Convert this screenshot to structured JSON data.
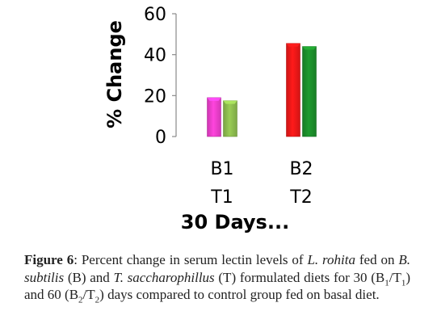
{
  "chart_data": {
    "type": "bar",
    "categories": [
      {
        "line1": "B1",
        "line2": "T1"
      },
      {
        "line1": "B2",
        "line2": "T2"
      }
    ],
    "bars": [
      {
        "label": "B1",
        "value": 19,
        "color": "#ff44dd",
        "category": 0
      },
      {
        "label": "T1",
        "value": 17.5,
        "color": "#99cc55",
        "category": 0
      },
      {
        "label": "B2",
        "value": 45.5,
        "color": "#ff1a1a",
        "category": 1
      },
      {
        "label": "T2",
        "value": 44,
        "color": "#1e9a2e",
        "category": 1
      }
    ],
    "yticks": [
      0,
      20,
      40,
      60
    ],
    "ylim": [
      0,
      60
    ],
    "ylabel": "% Change",
    "xlabel": "30 Days...",
    "grid": false
  },
  "caption": {
    "label": "Figure 6",
    "t1": ": Percent change in serum lectin levels of ",
    "species": "L. rohita",
    "t2": " fed on ",
    "bacterium1": "B. subtilis",
    "t3": " (B) and ",
    "bacterium2": "T. saccharophillus",
    "t4": " (T) formulated diets for 30 (B",
    "sub1": "1",
    "t5": "/T",
    "sub2": "1",
    "t6": ") and 60 (B",
    "sub3": "2",
    "t7": "/T",
    "sub4": "2",
    "t8": ") days compared to control group fed on basal diet."
  }
}
